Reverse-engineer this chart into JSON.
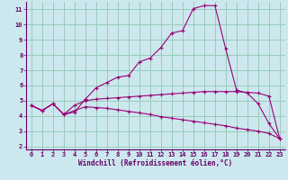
{
  "xlabel": "Windchill (Refroidissement éolien,°C)",
  "bg_color": "#cce8ee",
  "grid_color": "#99ccbb",
  "line_color": "#990077",
  "xlim": [
    -0.5,
    23.5
  ],
  "ylim": [
    1.8,
    11.5
  ],
  "yticks": [
    2,
    3,
    4,
    5,
    6,
    7,
    8,
    9,
    10,
    11
  ],
  "xticks": [
    0,
    1,
    2,
    3,
    4,
    5,
    6,
    7,
    8,
    9,
    10,
    11,
    12,
    13,
    14,
    15,
    16,
    17,
    18,
    19,
    20,
    21,
    22,
    23
  ],
  "curve1_x": [
    0,
    1,
    2,
    3,
    4,
    5,
    6,
    7,
    8,
    9,
    10,
    11,
    12,
    13,
    14,
    15,
    16,
    17,
    18,
    19,
    20,
    21,
    22,
    23
  ],
  "curve1_y": [
    4.7,
    4.35,
    4.8,
    4.1,
    4.25,
    5.1,
    5.85,
    6.2,
    6.55,
    6.65,
    7.55,
    7.8,
    8.5,
    9.45,
    9.6,
    11.05,
    11.25,
    11.25,
    8.4,
    5.7,
    5.5,
    4.8,
    3.5,
    2.5
  ],
  "curve2_x": [
    0,
    1,
    2,
    3,
    4,
    5,
    6,
    7,
    8,
    9,
    10,
    11,
    12,
    13,
    14,
    15,
    16,
    17,
    18,
    19,
    20,
    21,
    22,
    23
  ],
  "curve2_y": [
    4.7,
    4.35,
    4.8,
    4.1,
    4.7,
    5.0,
    5.1,
    5.15,
    5.2,
    5.25,
    5.3,
    5.35,
    5.4,
    5.45,
    5.5,
    5.55,
    5.6,
    5.6,
    5.6,
    5.6,
    5.55,
    5.5,
    5.3,
    2.5
  ],
  "curve3_x": [
    0,
    1,
    2,
    3,
    4,
    5,
    6,
    7,
    8,
    9,
    10,
    11,
    12,
    13,
    14,
    15,
    16,
    17,
    18,
    19,
    20,
    21,
    22,
    23
  ],
  "curve3_y": [
    4.7,
    4.35,
    4.8,
    4.1,
    4.35,
    4.6,
    4.55,
    4.5,
    4.4,
    4.3,
    4.2,
    4.1,
    3.95,
    3.85,
    3.75,
    3.65,
    3.55,
    3.45,
    3.35,
    3.2,
    3.1,
    3.0,
    2.85,
    2.5
  ]
}
